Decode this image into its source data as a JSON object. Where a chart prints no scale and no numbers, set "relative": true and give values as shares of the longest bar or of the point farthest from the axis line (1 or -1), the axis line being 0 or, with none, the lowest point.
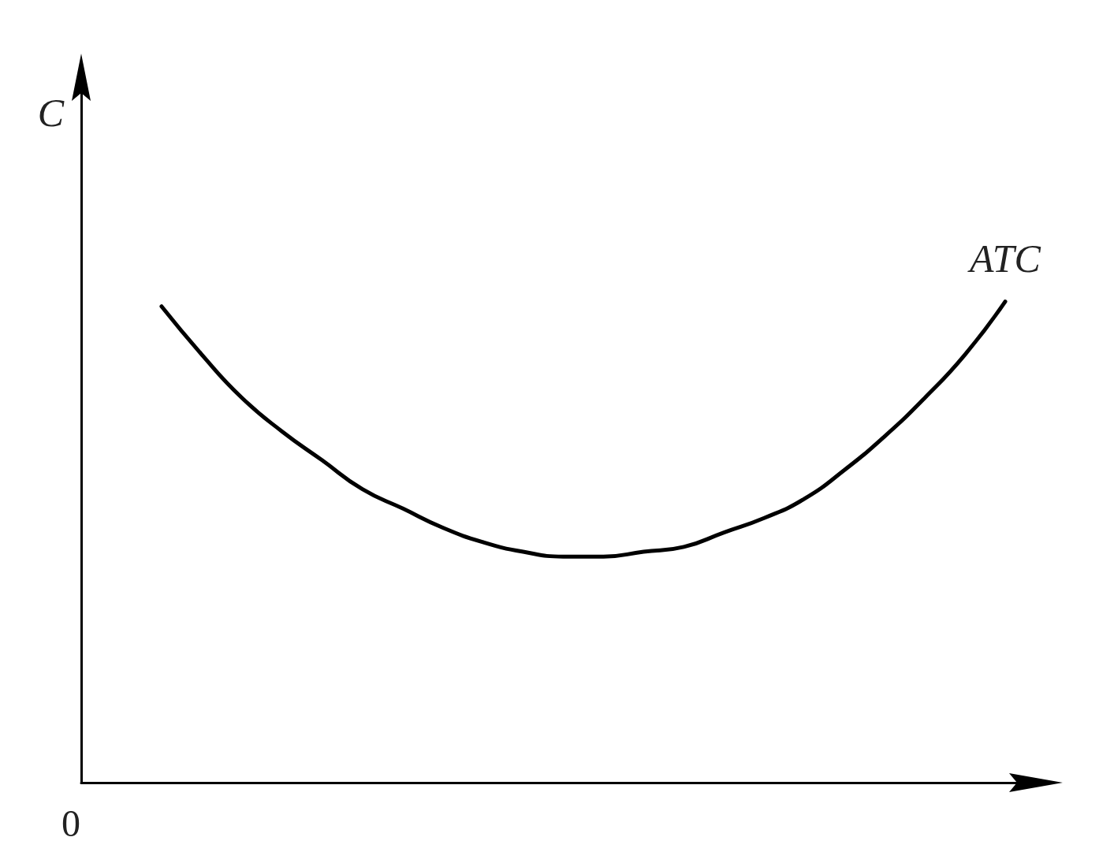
{
  "chart_data": {
    "type": "line",
    "relative": true,
    "ylabel": "C",
    "annotations": [
      "0"
    ],
    "grid": false,
    "legend": false,
    "marker": "none",
    "line_style": "solid",
    "categories": [
      null,
      null,
      null,
      null,
      null,
      null,
      null,
      null,
      null,
      null,
      null,
      null,
      null,
      null,
      null,
      null,
      null,
      null,
      null,
      null,
      null,
      null,
      null,
      null,
      null
    ],
    "series": [
      {
        "name": "ATC",
        "color": "#000000",
        "values": [
          null,
          null,
          0.99,
          0.89,
          0.8,
          0.73,
          0.67,
          0.61,
          0.57,
          0.53,
          0.5,
          0.48,
          0.47,
          0.47,
          0.48,
          0.49,
          0.52,
          0.55,
          0.59,
          0.65,
          0.72,
          0.8,
          0.89,
          1.0,
          null
        ]
      }
    ]
  }
}
